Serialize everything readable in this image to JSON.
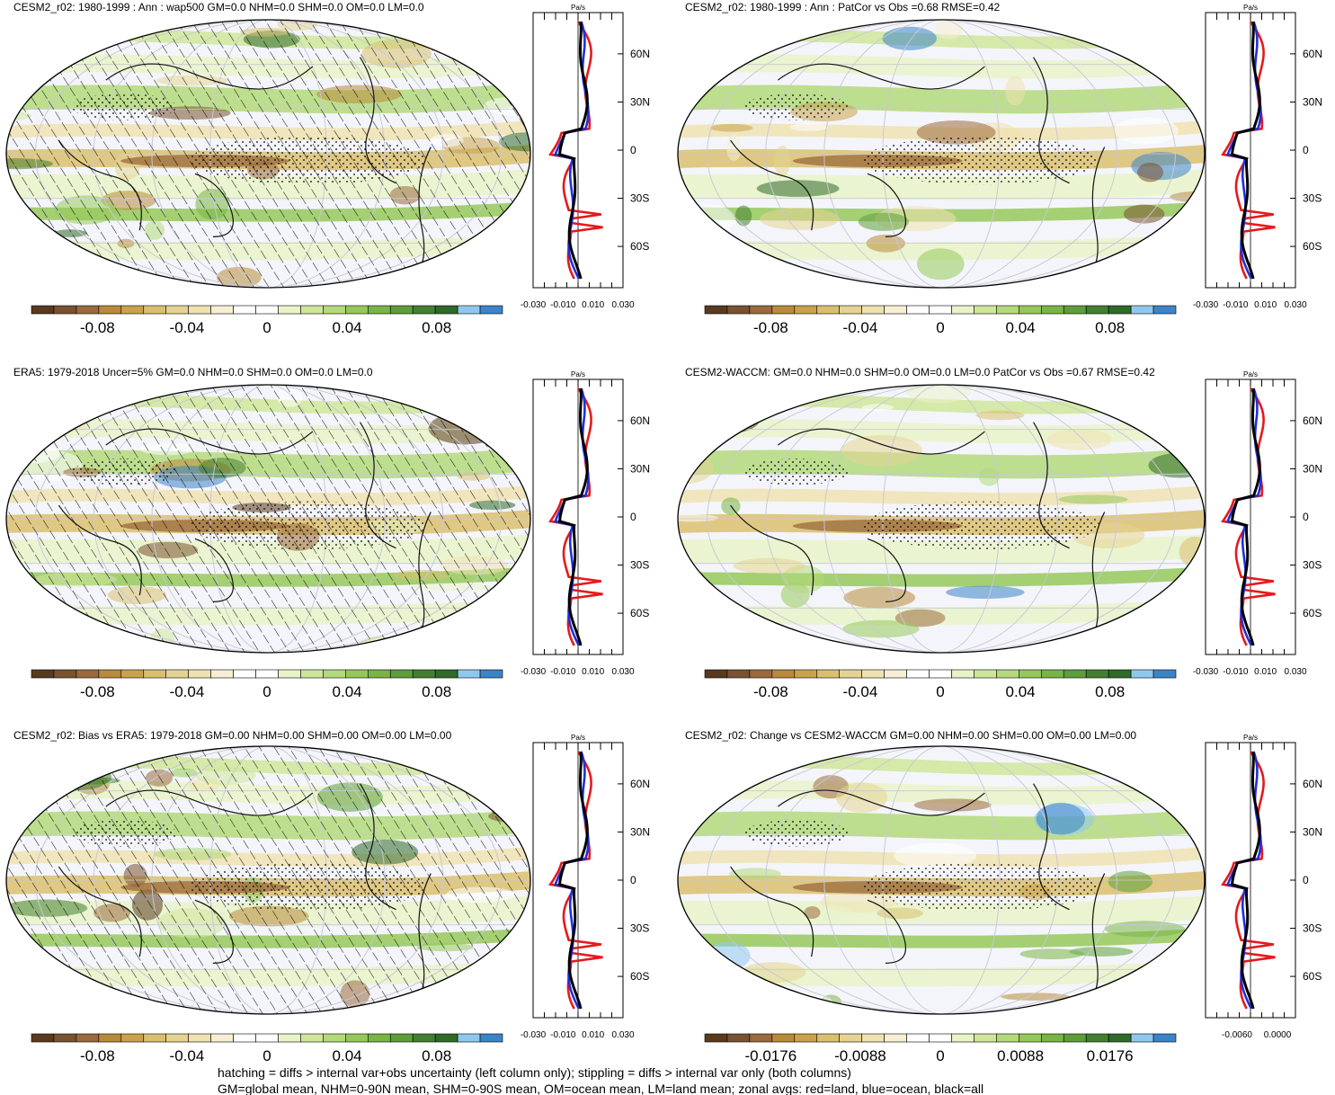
{
  "panels": [
    {
      "id": "p1",
      "title": "CESM2_r02: 1980-1999 : Ann : wap500 GM=0.0 NHM=0.0 SHM=0.0 OM=0.0 LM=0.0",
      "hatching": true,
      "colorbar_labels": [
        "-0.08",
        "-0.04",
        "0",
        "0.04",
        "0.08"
      ],
      "zonal_units": "Pa/s",
      "zonal_xticks": [
        "-0.030",
        "-0.010",
        "0.010",
        "0.030"
      ],
      "zonal_lat_labels": [
        "60N",
        "30N",
        "0",
        "30S",
        "60S"
      ]
    },
    {
      "id": "p2",
      "title": "CESM2_r02: 1980-1999 : Ann : PatCor vs Obs =0.68 RMSE=0.42",
      "hatching": false,
      "colorbar_labels": [
        "-0.08",
        "-0.04",
        "0",
        "0.04",
        "0.08"
      ],
      "zonal_units": "Pa/s",
      "zonal_xticks": [
        "-0.030",
        "-0.010",
        "0.010",
        "0.030"
      ],
      "zonal_lat_labels": [
        "60N",
        "30N",
        "0",
        "30S",
        "60S"
      ]
    },
    {
      "id": "p3",
      "title": "ERA5: 1979-2018 Uncer=5% GM=0.0 NHM=0.0 SHM=0.0 OM=0.0 LM=0.0",
      "hatching": true,
      "colorbar_labels": [
        "-0.08",
        "-0.04",
        "0",
        "0.04",
        "0.08"
      ],
      "zonal_units": "Pa/s",
      "zonal_xticks": [
        "-0.030",
        "-0.010",
        "0.010",
        "0.030"
      ],
      "zonal_lat_labels": [
        "60N",
        "30N",
        "0",
        "30S",
        "60S"
      ]
    },
    {
      "id": "p4",
      "title": "CESM2-WACCM: GM=0.0 NHM=0.0 SHM=0.0 OM=0.0 LM=0.0 PatCor vs Obs =0.67 RMSE=0.42",
      "hatching": false,
      "colorbar_labels": [
        "-0.08",
        "-0.04",
        "0",
        "0.04",
        "0.08"
      ],
      "zonal_units": "Pa/s",
      "zonal_xticks": [
        "-0.030",
        "-0.010",
        "0.010",
        "0.030"
      ],
      "zonal_lat_labels": [
        "60N",
        "30N",
        "0",
        "30S",
        "60S"
      ]
    },
    {
      "id": "p5",
      "title": "CESM2_r02: Bias vs ERA5: 1979-2018 GM=0.00 NHM=0.00 SHM=0.00 OM=0.00 LM=0.00",
      "hatching": true,
      "colorbar_labels": [
        "-0.08",
        "-0.04",
        "0",
        "0.04",
        "0.08"
      ],
      "zonal_units": "Pa/s",
      "zonal_xticks": [
        "-0.030",
        "-0.010",
        "0.010",
        "0.030"
      ],
      "zonal_lat_labels": [
        "60N",
        "30N",
        "0",
        "30S",
        "60S"
      ]
    },
    {
      "id": "p6",
      "title": "CESM2_r02: Change vs CESM2-WACCM GM=0.00 NHM=0.00 SHM=0.00 OM=0.00 LM=0.00",
      "hatching": false,
      "colorbar_labels": [
        "-0.0176",
        "-0.0088",
        "0",
        "0.0088",
        "0.0176"
      ],
      "zonal_units": "Pa/s",
      "zonal_xticks": [
        "-0.0060",
        "0.0000"
      ],
      "zonal_lat_labels": [
        "60N",
        "30N",
        "0",
        "30S",
        "60S"
      ]
    }
  ],
  "colors": {
    "palette": [
      "#5a3a1e",
      "#7a5230",
      "#9a6a3c",
      "#b88a3a",
      "#c9a24a",
      "#d9bf6e",
      "#e6d391",
      "#efe2b0",
      "#f6efd3",
      "#ffffff",
      "#ffffff",
      "#e8f3c8",
      "#cfe69a",
      "#b3d97a",
      "#95c85a",
      "#78b545",
      "#5c9e3a",
      "#447f2f",
      "#2f6a28",
      "#8ec8ee",
      "#3b84c8"
    ],
    "land_line": "#e41a1c",
    "ocean_line": "#1f2fdc",
    "all_line": "#000000"
  },
  "footer": {
    "line1": "hatching = diffs > internal var+obs uncertainty (left column only); stippling = diffs > internal var only (both columns)",
    "line2": "GM=global mean, NHM=0-90N mean, SHM=0-90S mean, OM=ocean mean, LM=land mean; zonal avgs: red=land, blue=ocean, black=all"
  }
}
